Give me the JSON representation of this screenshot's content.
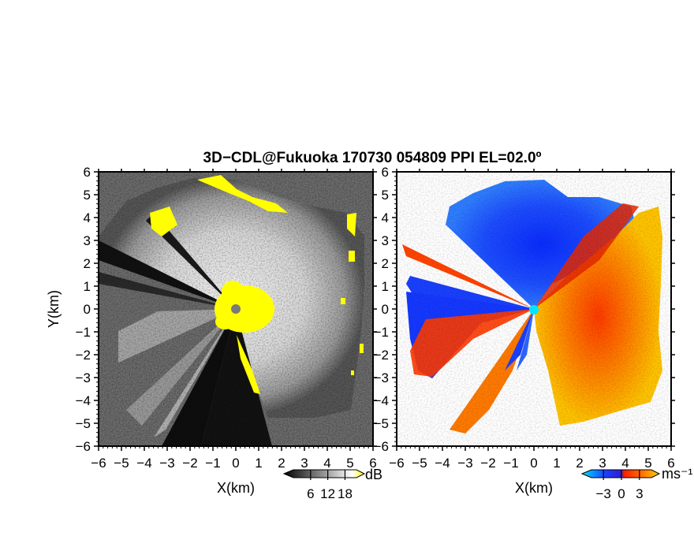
{
  "title": "3D−CDL@Fukuoka 170730 054809 PPI EL=02.0º",
  "chart_data": [
    {
      "type": "heatmap",
      "panel": "reflectivity",
      "xlabel": "X(km)",
      "ylabel": "Y(km)",
      "xlim": [
        -6,
        6
      ],
      "ylim": [
        -6,
        6
      ],
      "xticks": [
        "−6",
        "−5",
        "−4",
        "−3",
        "−2",
        "−1",
        "0",
        "1",
        "2",
        "3",
        "4",
        "5",
        "6"
      ],
      "yticks": [
        "6",
        "5",
        "4",
        "3",
        "2",
        "1",
        "0",
        "−1",
        "−2",
        "−3",
        "−4",
        "−5",
        "−6"
      ],
      "colorbar": {
        "unit": "dB",
        "ticks": [
          "6",
          "12",
          "18"
        ],
        "range": [
          0,
          22
        ],
        "colors": [
          "#000000",
          "#ffffff",
          "#ffff00"
        ]
      },
      "radar_center": [
        0,
        0
      ],
      "center_marker_color": "#777777",
      "highlight_color": "#ffff00"
    },
    {
      "type": "heatmap",
      "panel": "doppler_velocity",
      "xlabel": "X(km)",
      "ylabel": "",
      "xlim": [
        -6,
        6
      ],
      "ylim": [
        -6,
        6
      ],
      "xticks": [
        "−6",
        "−5",
        "−4",
        "−3",
        "−2",
        "−1",
        "0",
        "1",
        "2",
        "3",
        "4",
        "5",
        "6"
      ],
      "yticks": [
        "6",
        "5",
        "4",
        "3",
        "2",
        "1",
        "0",
        "−1",
        "−2",
        "−3",
        "−4",
        "−5",
        "−6"
      ],
      "colorbar": {
        "unit": "ms⁻¹",
        "ticks": [
          "−3",
          "0",
          "3"
        ],
        "range": [
          -5,
          5
        ],
        "colors": [
          "#00d8ff",
          "#0030ff",
          "#ff2000",
          "#ffcc00"
        ]
      },
      "radar_center": [
        0,
        0
      ],
      "center_marker_color": "#00e5ff",
      "toward_color": "#1540ff",
      "away_color": "#ff6a00"
    }
  ]
}
